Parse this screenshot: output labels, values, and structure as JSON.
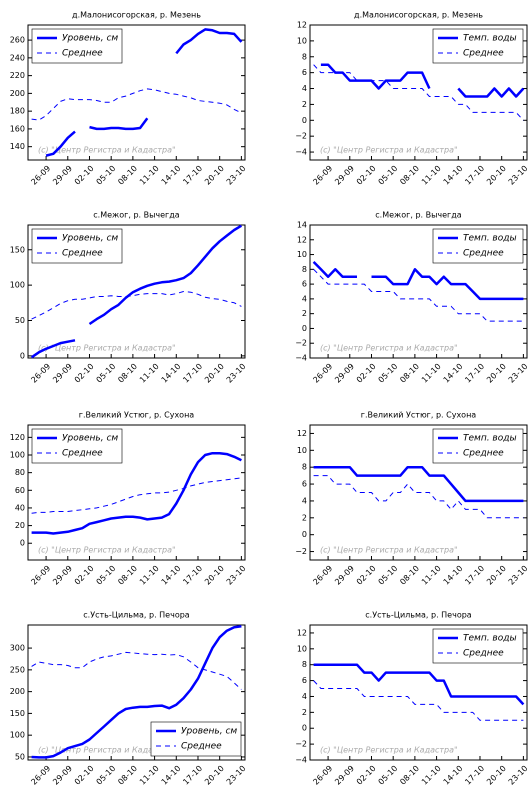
{
  "chart_data": [
    {
      "type": "line",
      "title": "д.Малонисогорская, р. Мезень",
      "watermark": "(с) \"Центр Регистра и Кадастра\"",
      "categories": [
        null,
        null,
        "26-09",
        null,
        null,
        "29-09",
        null,
        null,
        "02-10",
        null,
        null,
        "05-10",
        null,
        null,
        "08-10",
        null,
        null,
        "11-10",
        null,
        null,
        "14-10",
        null,
        null,
        "17-10",
        null,
        null,
        "20-10",
        null,
        null,
        "23-10"
      ],
      "series": [
        {
          "name": "Уровень, см",
          "color": "#0000ff",
          "style": "solid",
          "values": [
            null,
            null,
            130,
            132,
            140,
            150,
            157,
            null,
            162,
            160,
            160,
            161,
            161,
            160,
            160,
            161,
            172,
            null,
            null,
            null,
            245,
            255,
            260,
            267,
            272,
            271,
            268,
            268,
            267,
            258
          ]
        },
        {
          "name": "Среднее",
          "color": "#0000ff",
          "style": "dashed",
          "values": [
            171,
            170,
            175,
            183,
            191,
            194,
            193,
            193,
            193,
            192,
            190,
            190,
            195,
            197,
            200,
            203,
            205,
            204,
            202,
            200,
            199,
            197,
            195,
            192,
            191,
            190,
            189,
            187,
            182,
            178
          ]
        }
      ],
      "ylim": [
        125,
        277
      ],
      "yticks": [
        140,
        160,
        180,
        200,
        220,
        240,
        260
      ],
      "legend": "upper left"
    },
    {
      "type": "line",
      "title": "д.Малонисогорская, р. Мезень",
      "watermark": "(с) \"Центр Регистра и Кадастра\"",
      "categories": [
        null,
        null,
        "26-09",
        null,
        null,
        "29-09",
        null,
        null,
        "02-10",
        null,
        null,
        "05-10",
        null,
        null,
        "08-10",
        null,
        null,
        "11-10",
        null,
        null,
        "14-10",
        null,
        null,
        "17-10",
        null,
        null,
        "20-10",
        null,
        null,
        "23-10"
      ],
      "series": [
        {
          "name": "Темп. воды",
          "color": "#0000ff",
          "style": "solid",
          "values": [
            null,
            7,
            7,
            6,
            6,
            5,
            5,
            5,
            5,
            4,
            5,
            5,
            5,
            6,
            6,
            6,
            4,
            null,
            null,
            null,
            4,
            3,
            3,
            3,
            3,
            4,
            3,
            4,
            3,
            4
          ]
        },
        {
          "name": "Среднее",
          "color": "#0000ff",
          "style": "dashed",
          "values": [
            7,
            6,
            6,
            6,
            6,
            6,
            5,
            5,
            5,
            5,
            5,
            4,
            4,
            4,
            4,
            4,
            3,
            3,
            3,
            3,
            2,
            2,
            1,
            1,
            1,
            1,
            1,
            1,
            1,
            0
          ]
        }
      ],
      "ylim": [
        -5,
        12
      ],
      "yticks": [
        {
          "value": -4,
          "label": "−4"
        },
        {
          "value": -2,
          "label": "−2"
        },
        0,
        2,
        4,
        6,
        8,
        10,
        12
      ],
      "legend": "upper right"
    },
    {
      "type": "line",
      "title": "с.Межог, р. Вычегда",
      "watermark": "(с) \"Центр Регистра и Кадастра\"",
      "categories": [
        null,
        null,
        "26-09",
        null,
        null,
        "29-09",
        null,
        null,
        "02-10",
        null,
        null,
        "05-10",
        null,
        null,
        "08-10",
        null,
        null,
        "11-10",
        null,
        null,
        "14-10",
        null,
        null,
        "17-10",
        null,
        null,
        "20-10",
        null,
        null,
        "23-10"
      ],
      "series": [
        {
          "name": "Уровень, см",
          "color": "#0000ff",
          "style": "solid",
          "values": [
            -2,
            5,
            10,
            14,
            18,
            20,
            22,
            null,
            45,
            52,
            58,
            66,
            72,
            82,
            90,
            95,
            99,
            102,
            104,
            105,
            107,
            110,
            117,
            128,
            140,
            152,
            162,
            170,
            178,
            184
          ]
        },
        {
          "name": "Среднее",
          "color": "#0000ff",
          "style": "dashed",
          "values": [
            52,
            57,
            62,
            68,
            74,
            78,
            80,
            80,
            82,
            84,
            84,
            85,
            84,
            84,
            85,
            87,
            88,
            88,
            88,
            86,
            88,
            91,
            90,
            87,
            83,
            81,
            80,
            77,
            75,
            70
          ]
        }
      ],
      "ylim": [
        -3,
        185
      ],
      "yticks": [
        0,
        50,
        100,
        150
      ],
      "legend": "upper left"
    },
    {
      "type": "line",
      "title": "с.Межог, р. Вычегда",
      "watermark": "(с) \"Центр Регистра и Кадастра\"",
      "categories": [
        null,
        null,
        "26-09",
        null,
        null,
        "29-09",
        null,
        null,
        "02-10",
        null,
        null,
        "05-10",
        null,
        null,
        "08-10",
        null,
        null,
        "11-10",
        null,
        null,
        "14-10",
        null,
        null,
        "17-10",
        null,
        null,
        "20-10",
        null,
        null,
        "23-10"
      ],
      "series": [
        {
          "name": "Темп. воды",
          "color": "#0000ff",
          "style": "solid",
          "values": [
            9,
            8,
            7,
            8,
            7,
            7,
            7,
            null,
            7,
            7,
            7,
            6,
            6,
            6,
            8,
            7,
            7,
            6,
            7,
            6,
            6,
            6,
            5,
            4,
            4,
            4,
            4,
            4,
            4,
            4
          ]
        },
        {
          "name": "Среднее",
          "color": "#0000ff",
          "style": "dashed",
          "values": [
            8,
            7,
            6,
            6,
            6,
            6,
            6,
            6,
            5,
            5,
            5,
            5,
            4,
            4,
            4,
            4,
            4,
            3,
            3,
            3,
            2,
            2,
            2,
            2,
            1,
            1,
            1,
            1,
            1,
            1
          ]
        }
      ],
      "ylim": [
        -4,
        14
      ],
      "yticks": [
        {
          "value": -4,
          "label": "−4"
        },
        {
          "value": -2,
          "label": "−2"
        },
        0,
        2,
        4,
        6,
        8,
        10,
        12,
        14
      ],
      "legend": "upper right"
    },
    {
      "type": "line",
      "title": "г.Великий Устюг, р. Сухона",
      "watermark": "(с) \"Центр Регистра и Кадастра\"",
      "categories": [
        null,
        null,
        "26-09",
        null,
        null,
        "29-09",
        null,
        null,
        "02-10",
        null,
        null,
        "05-10",
        null,
        null,
        "08-10",
        null,
        null,
        "11-10",
        null,
        null,
        "14-10",
        null,
        null,
        "17-10",
        null,
        null,
        "20-10",
        null,
        null,
        "23-10"
      ],
      "series": [
        {
          "name": "Уровень, см",
          "color": "#0000ff",
          "style": "solid",
          "values": [
            12,
            12,
            12,
            11,
            12,
            13,
            15,
            17,
            22,
            24,
            26,
            28,
            29,
            30,
            30,
            29,
            27,
            28,
            29,
            33,
            45,
            60,
            78,
            92,
            100,
            102,
            102,
            101,
            98,
            94
          ]
        },
        {
          "name": "Среднее",
          "color": "#0000ff",
          "style": "dashed",
          "values": [
            34,
            35,
            35,
            36,
            36,
            36,
            37,
            38,
            39,
            40,
            42,
            44,
            47,
            50,
            53,
            55,
            56,
            57,
            57,
            58,
            60,
            62,
            65,
            67,
            69,
            70,
            71,
            72,
            73,
            74
          ]
        }
      ],
      "ylim": [
        -19,
        134
      ],
      "yticks": [
        0,
        20,
        40,
        60,
        80,
        100,
        120
      ],
      "legend": "upper left"
    },
    {
      "type": "line",
      "title": "г.Великий Устюг, р. Сухона",
      "watermark": "(с) \"Центр Регистра и Кадастра\"",
      "categories": [
        null,
        null,
        "26-09",
        null,
        null,
        "29-09",
        null,
        null,
        "02-10",
        null,
        null,
        "05-10",
        null,
        null,
        "08-10",
        null,
        null,
        "11-10",
        null,
        null,
        "14-10",
        null,
        null,
        "17-10",
        null,
        null,
        "20-10",
        null,
        null,
        "23-10"
      ],
      "series": [
        {
          "name": "Темп. воды",
          "color": "#0000ff",
          "style": "solid",
          "values": [
            8,
            8,
            8,
            8,
            8,
            8,
            7,
            7,
            7,
            7,
            7,
            7,
            7,
            8,
            8,
            8,
            7,
            7,
            7,
            6,
            5,
            4,
            4,
            4,
            4,
            4,
            4,
            4,
            4,
            4
          ]
        },
        {
          "name": "Среднее",
          "color": "#0000ff",
          "style": "dashed",
          "values": [
            7,
            7,
            7,
            6,
            6,
            6,
            5,
            5,
            5,
            4,
            4,
            5,
            5,
            6,
            5,
            5,
            5,
            4,
            4,
            3,
            4,
            3,
            3,
            3,
            2,
            2,
            2,
            2,
            2,
            2
          ]
        }
      ],
      "ylim": [
        -3,
        13
      ],
      "yticks": [
        {
          "value": -2,
          "label": "−2"
        },
        0,
        2,
        4,
        6,
        8,
        10,
        12
      ],
      "legend": "upper right"
    },
    {
      "type": "line",
      "title": "с.Усть-Цильма, р. Печора",
      "watermark": "(с) \"Центр Регистра и Кадастра\"",
      "categories": [
        null,
        null,
        "26-09",
        null,
        null,
        "29-09",
        null,
        null,
        "02-10",
        null,
        null,
        "05-10",
        null,
        null,
        "08-10",
        null,
        null,
        "11-10",
        null,
        null,
        "14-10",
        null,
        null,
        "17-10",
        null,
        null,
        "20-10",
        null,
        null,
        "23-10"
      ],
      "series": [
        {
          "name": "Уровень, см",
          "color": "#0000ff",
          "style": "solid",
          "values": [
            50,
            49,
            49,
            52,
            60,
            70,
            75,
            80,
            90,
            105,
            120,
            135,
            150,
            160,
            163,
            165,
            165,
            167,
            168,
            162,
            170,
            185,
            205,
            230,
            265,
            300,
            325,
            340,
            348,
            350
          ]
        },
        {
          "name": "Среднее",
          "color": "#0000ff",
          "style": "dashed",
          "values": [
            258,
            268,
            265,
            262,
            262,
            260,
            255,
            255,
            268,
            275,
            280,
            282,
            286,
            290,
            289,
            287,
            286,
            285,
            286,
            284,
            285,
            280,
            268,
            255,
            250,
            245,
            240,
            235,
            220,
            205
          ]
        }
      ],
      "ylim": [
        43,
        353
      ],
      "yticks": [
        50,
        100,
        150,
        200,
        250,
        300
      ],
      "legend": "lower right"
    },
    {
      "type": "line",
      "title": "с.Усть-Цильма, р. Печора",
      "watermark": "(с) \"Центр Регистра и Кадастра\"",
      "categories": [
        null,
        null,
        "26-09",
        null,
        null,
        "29-09",
        null,
        null,
        "02-10",
        null,
        null,
        "05-10",
        null,
        null,
        "08-10",
        null,
        null,
        "11-10",
        null,
        null,
        "14-10",
        null,
        null,
        "17-10",
        null,
        null,
        "20-10",
        null,
        null,
        "23-10"
      ],
      "series": [
        {
          "name": "Темп. воды",
          "color": "#0000ff",
          "style": "solid",
          "values": [
            8,
            8,
            8,
            8,
            8,
            8,
            8,
            7,
            7,
            6,
            7,
            7,
            7,
            7,
            7,
            7,
            7,
            6,
            6,
            4,
            4,
            4,
            4,
            4,
            4,
            4,
            4,
            4,
            4,
            3
          ]
        },
        {
          "name": "Среднее",
          "color": "#0000ff",
          "style": "dashed",
          "values": [
            6,
            5,
            5,
            5,
            5,
            5,
            5,
            4,
            4,
            4,
            4,
            4,
            4,
            4,
            3,
            3,
            3,
            3,
            2,
            2,
            2,
            2,
            2,
            1,
            1,
            1,
            1,
            1,
            1,
            1
          ]
        }
      ],
      "ylim": [
        -4,
        13
      ],
      "yticks": [
        {
          "value": -4,
          "label": "−4"
        },
        {
          "value": -2,
          "label": "−2"
        },
        0,
        2,
        4,
        6,
        8,
        10,
        12
      ],
      "legend": "upper right"
    }
  ]
}
